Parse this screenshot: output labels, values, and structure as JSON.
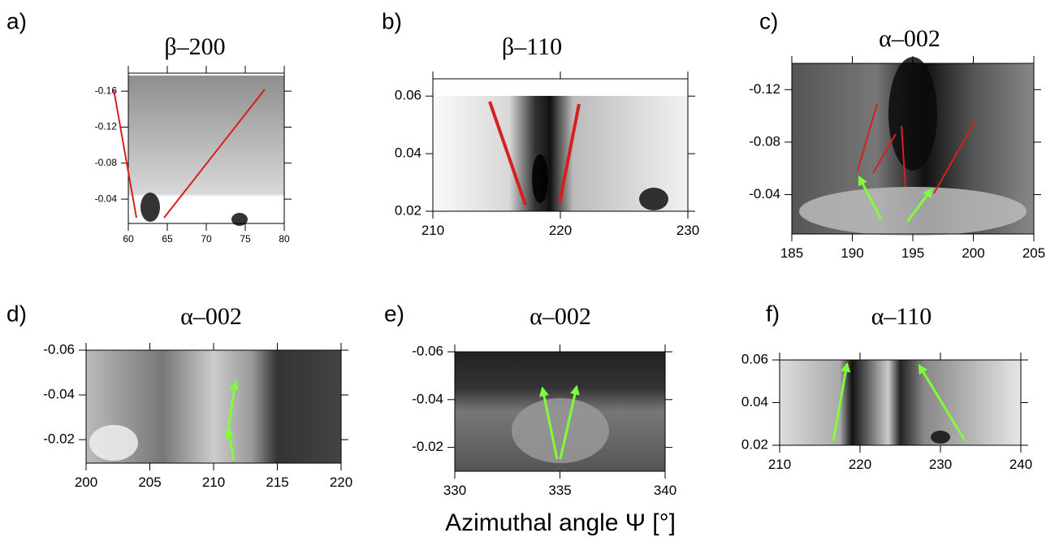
{
  "chart_data": [
    {
      "type": "image",
      "panel": "a)",
      "title": "β–200",
      "xlim": [
        60,
        80
      ],
      "xticks": [
        60,
        65,
        70,
        75,
        80
      ],
      "ylim": [
        -0.013,
        -0.18
      ],
      "yticks": [
        -0.16,
        -0.12,
        -0.08,
        -0.04
      ]
    },
    {
      "type": "image",
      "panel": "b)",
      "title": "β–110",
      "xlim": [
        210,
        230
      ],
      "xticks": [
        210,
        220,
        230
      ],
      "ylim": [
        0.02,
        0.066
      ],
      "yticks": [
        0.06,
        0.04,
        0.02
      ]
    },
    {
      "type": "image",
      "panel": "c)",
      "title": "α–002",
      "xlim": [
        185,
        205
      ],
      "xticks": [
        185,
        190,
        195,
        200,
        205
      ],
      "ylim": [
        -0.01,
        -0.14
      ],
      "yticks": [
        -0.12,
        -0.08,
        -0.04
      ]
    },
    {
      "type": "image",
      "panel": "d)",
      "title": "α–002",
      "xlim": [
        200,
        220
      ],
      "xticks": [
        200,
        205,
        210,
        215,
        220
      ],
      "ylim": [
        -0.0095,
        -0.06
      ],
      "yticks": [
        -0.06,
        -0.04,
        -0.02
      ]
    },
    {
      "type": "image",
      "panel": "e)",
      "title": "α–002",
      "xlim": [
        330,
        340
      ],
      "xticks": [
        330,
        335,
        340
      ],
      "ylim": [
        -0.01,
        -0.06
      ],
      "yticks": [
        -0.06,
        -0.04,
        -0.02
      ]
    },
    {
      "type": "image",
      "panel": "f)",
      "title": "α–110",
      "xlim": [
        210,
        240
      ],
      "xticks": [
        210,
        220,
        230,
        240
      ],
      "ylim": [
        0.02,
        0.06
      ],
      "yticks": [
        0.06,
        0.04,
        0.02
      ]
    }
  ],
  "figure": {
    "xlabel": "Azimuthal angle Ψ [°]"
  }
}
